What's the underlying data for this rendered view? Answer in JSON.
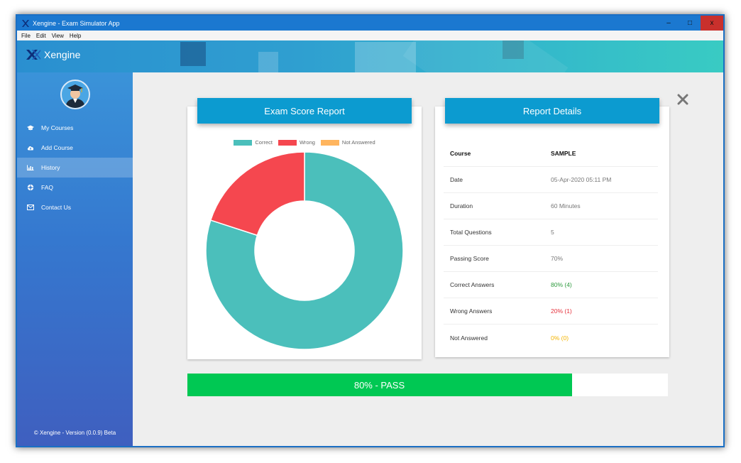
{
  "window": {
    "title": "Xengine -  Exam Simulator App",
    "controls": [
      "–",
      "□",
      "x"
    ]
  },
  "menu": [
    "File",
    "Edit",
    "View",
    "Help"
  ],
  "header": {
    "brand": "Xengine"
  },
  "sidebar": {
    "items": [
      {
        "label": "My Courses",
        "icon": "graduation-cap-icon"
      },
      {
        "label": "Add Course",
        "icon": "cloud-upload-icon"
      },
      {
        "label": "History",
        "icon": "bar-chart-icon",
        "active": true
      },
      {
        "label": "FAQ",
        "icon": "life-ring-icon"
      },
      {
        "label": "Contact Us",
        "icon": "envelope-icon"
      }
    ],
    "footer": "© Xengine - Version (0.0.9) Beta"
  },
  "score_card": {
    "title": "Exam Score Report",
    "legend": [
      {
        "label": "Correct",
        "color": "#4bbfbb"
      },
      {
        "label": "Wrong",
        "color": "#f5474f"
      },
      {
        "label": "Not Answered",
        "color": "#ffb55e"
      }
    ]
  },
  "chart_data": {
    "type": "pie",
    "categories": [
      "Correct",
      "Wrong",
      "Not Answered"
    ],
    "values": [
      4,
      1,
      0
    ],
    "colors": [
      "#4bbfbb",
      "#f5474f",
      "#ffb55e"
    ],
    "donut": true,
    "legend_position": "top"
  },
  "details_card": {
    "title": "Report Details",
    "rows": [
      {
        "key": "Course",
        "value": "SAMPLE",
        "header": true
      },
      {
        "key": "Date",
        "value": " 05-Apr-2020 05:11 PM"
      },
      {
        "key": "Duration",
        "value": "60 Minutes"
      },
      {
        "key": "Total Questions",
        "value": "5"
      },
      {
        "key": "Passing Score",
        "value": "70%"
      },
      {
        "key": "Correct Answers",
        "value": "80% (4)",
        "color": "#2e9a3e"
      },
      {
        "key": "Wrong Answers",
        "value": "20% (1)",
        "color": "#e5303b"
      },
      {
        "key": "Not Answered",
        "value": "0% (0)",
        "color": "#f4b400"
      }
    ]
  },
  "result": {
    "label": "80% - PASS",
    "percent": 80,
    "color": "#00c853"
  }
}
